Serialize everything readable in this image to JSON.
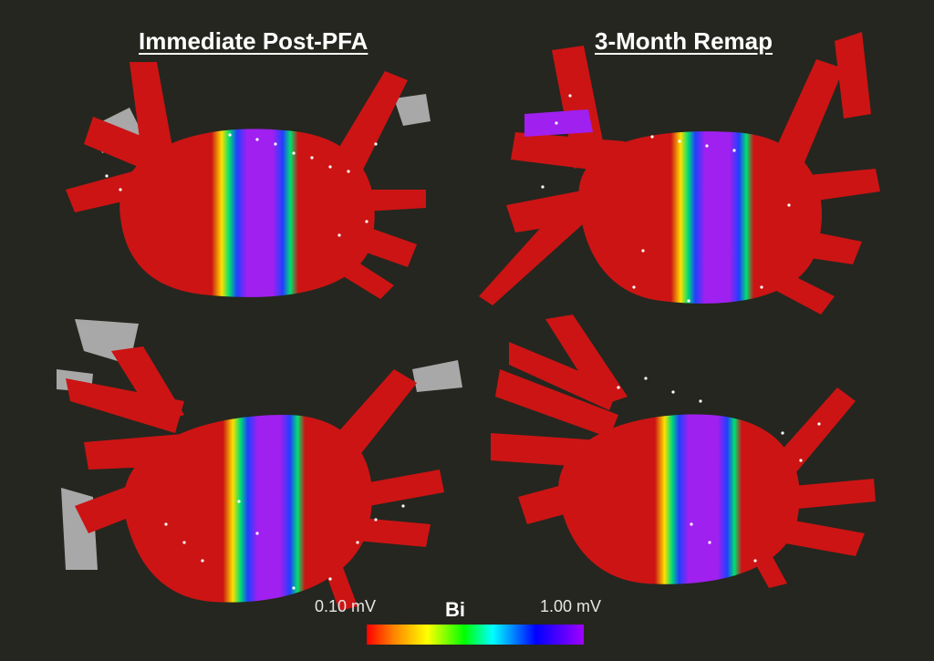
{
  "titles": {
    "left": "Immediate Post-PFA",
    "right": "3-Month Remap"
  },
  "color_scale": {
    "label": "Bi",
    "min_label": "0.10 mV",
    "max_label": "1.00 mV",
    "colors": [
      "#ff0000",
      "#ffff00",
      "#00ff00",
      "#00ffff",
      "#0000ff",
      "#a000ff"
    ]
  },
  "colors": {
    "background": "#25261f",
    "low_voltage": "#cc1414",
    "healthy": "#a020f0",
    "border_zone": "#00e070",
    "vein_gray": "#a8a8a8"
  }
}
